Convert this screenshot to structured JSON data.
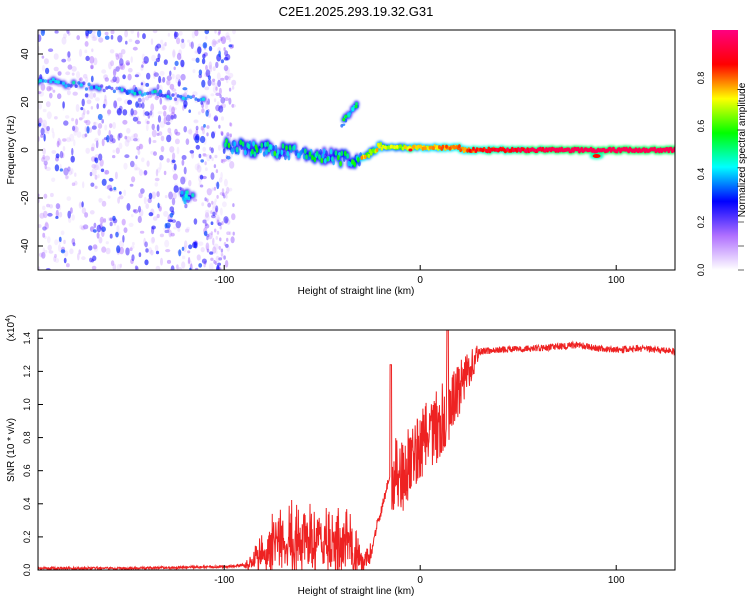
{
  "figure_title": "C2E1.2025.293.19.32.G31",
  "chart_data": [
    {
      "type": "heatmap",
      "title": "C2E1.2025.293.19.32.G31",
      "xlabel": "Height of straight line (km)",
      "ylabel": "Frequency (Hz)",
      "xlim": [
        -195,
        130
      ],
      "ylim": [
        -50,
        50
      ],
      "xticks": [
        -100,
        0,
        100
      ],
      "yticks": [
        -40,
        -20,
        0,
        20,
        40
      ],
      "colorbar": {
        "label": "Normalized spectral amplitude",
        "range": [
          0,
          1
        ],
        "ticks": [
          "0.0",
          "0.2",
          "0.4",
          "0.6",
          "0.8"
        ],
        "colors": [
          "#ffffff",
          "#b070ff",
          "#0000ff",
          "#00ffff",
          "#00ff00",
          "#ffff00",
          "#ff0000",
          "#ff0080"
        ]
      },
      "features": [
        {
          "name": "main tonal line",
          "x_start": -100,
          "x_end": 130,
          "frequency_hz": 0,
          "peak_amplitude": 0.95
        },
        {
          "name": "upper-left noise band",
          "x_start": -195,
          "x_end": -110,
          "frequency_hz": 24,
          "peak_amplitude": 0.45
        },
        {
          "name": "transient blob",
          "x_start": -40,
          "x_end": -32,
          "frequency_hz": 15,
          "peak_amplitude": 0.6
        },
        {
          "name": "low-frequency blob",
          "x_start": -122,
          "x_end": -116,
          "frequency_hz": -20,
          "peak_amplitude": 0.45
        },
        {
          "name": "broadband noise region",
          "x_start": -195,
          "x_end": -95,
          "frequency_hz": 0,
          "peak_amplitude": 0.3
        }
      ]
    },
    {
      "type": "line",
      "title": "",
      "xlabel": "Height of straight line (km)",
      "ylabel": "SNR (10 * v/v)",
      "scale_label_text": "(x10",
      "scale_label_sup": "4",
      "scale_label_close": ")",
      "xlim": [
        -195,
        130
      ],
      "ylim": [
        0,
        1.45
      ],
      "xticks": [
        -100,
        0,
        100
      ],
      "yticks": [
        0.0,
        0.2,
        0.4,
        0.6,
        0.8,
        1.0,
        1.2,
        1.4
      ],
      "color": "#ee2222",
      "series": [
        {
          "name": "SNR",
          "x": [
            -195,
            -150,
            -100,
            -90,
            -85,
            -80,
            -75,
            -70,
            -65,
            -60,
            -55,
            -50,
            -45,
            -40,
            -35,
            -30,
            -25,
            -22,
            -20,
            -18,
            -16,
            -14,
            -12,
            -10,
            -8,
            -5,
            0,
            5,
            10,
            15,
            20,
            25,
            28,
            30,
            40,
            60,
            80,
            90,
            100,
            110,
            120,
            130
          ],
          "values": [
            0.01,
            0.01,
            0.02,
            0.03,
            0.07,
            0.15,
            0.22,
            0.25,
            0.27,
            0.26,
            0.25,
            0.27,
            0.26,
            0.25,
            0.2,
            0.08,
            0.1,
            0.28,
            0.35,
            0.45,
            0.55,
            0.6,
            0.6,
            0.58,
            0.6,
            0.68,
            0.75,
            0.85,
            0.9,
            1.0,
            1.12,
            1.22,
            1.28,
            1.32,
            1.33,
            1.34,
            1.36,
            1.34,
            1.33,
            1.34,
            1.33,
            1.32
          ]
        }
      ]
    }
  ]
}
